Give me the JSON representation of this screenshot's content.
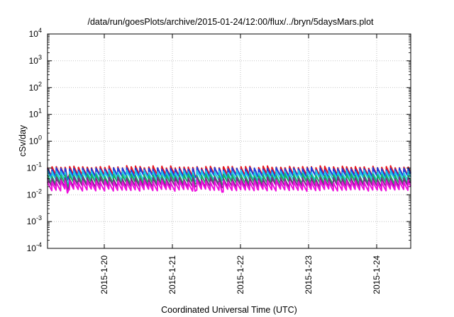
{
  "chart_data": {
    "type": "line",
    "title": "/data/run/goesPlots/archive/2015-01-24/12:00/flux/../bryn/5daysMars.plot",
    "xlabel": "Coordinated Universal Time (UTC)",
    "ylabel": "cSv/day",
    "y_scale": "log",
    "ylim": [
      0.0001,
      10000
    ],
    "y_ticks": [
      {
        "value": 0.0001,
        "base": "10",
        "exp": "-4"
      },
      {
        "value": 0.001,
        "base": "10",
        "exp": "-3"
      },
      {
        "value": 0.01,
        "base": "10",
        "exp": "-2"
      },
      {
        "value": 0.1,
        "base": "10",
        "exp": "-1"
      },
      {
        "value": 1,
        "base": "10",
        "exp": "0"
      },
      {
        "value": 10,
        "base": "10",
        "exp": "1"
      },
      {
        "value": 100,
        "base": "10",
        "exp": "2"
      },
      {
        "value": 1000,
        "base": "10",
        "exp": "3"
      },
      {
        "value": 10000,
        "base": "10",
        "exp": "4"
      }
    ],
    "xlim": [
      "2015-01-19T04:00",
      "2015-01-24T12:00"
    ],
    "x_ticks": [
      {
        "value": "2015-01-20T00:00",
        "label": "2015-1-20"
      },
      {
        "value": "2015-01-21T00:00",
        "label": "2015-1-21"
      },
      {
        "value": "2015-01-22T00:00",
        "label": "2015-1-22"
      },
      {
        "value": "2015-01-23T00:00",
        "label": "2015-1-23"
      },
      {
        "value": "2015-01-24T00:00",
        "label": "2015-1-24"
      }
    ],
    "grid": true,
    "legend": "none",
    "pattern": {
      "description": "sawtooth repeating roughly every 90 minutes; each cycle rises sharply then decays",
      "period_hours": 1.55
    },
    "series": [
      {
        "color": "#e8141e",
        "peak": 0.11,
        "trough": 0.052
      },
      {
        "color": "#1a3fe0",
        "peak": 0.095,
        "trough": 0.046
      },
      {
        "color": "#22c8e8",
        "peak": 0.075,
        "trough": 0.035
      },
      {
        "color": "#18b060",
        "peak": 0.055,
        "trough": 0.026
      },
      {
        "color": "#7a2a8a",
        "peak": 0.042,
        "trough": 0.02
      },
      {
        "color": "#ee10dd",
        "peak": 0.032,
        "trough": 0.0145
      }
    ]
  }
}
